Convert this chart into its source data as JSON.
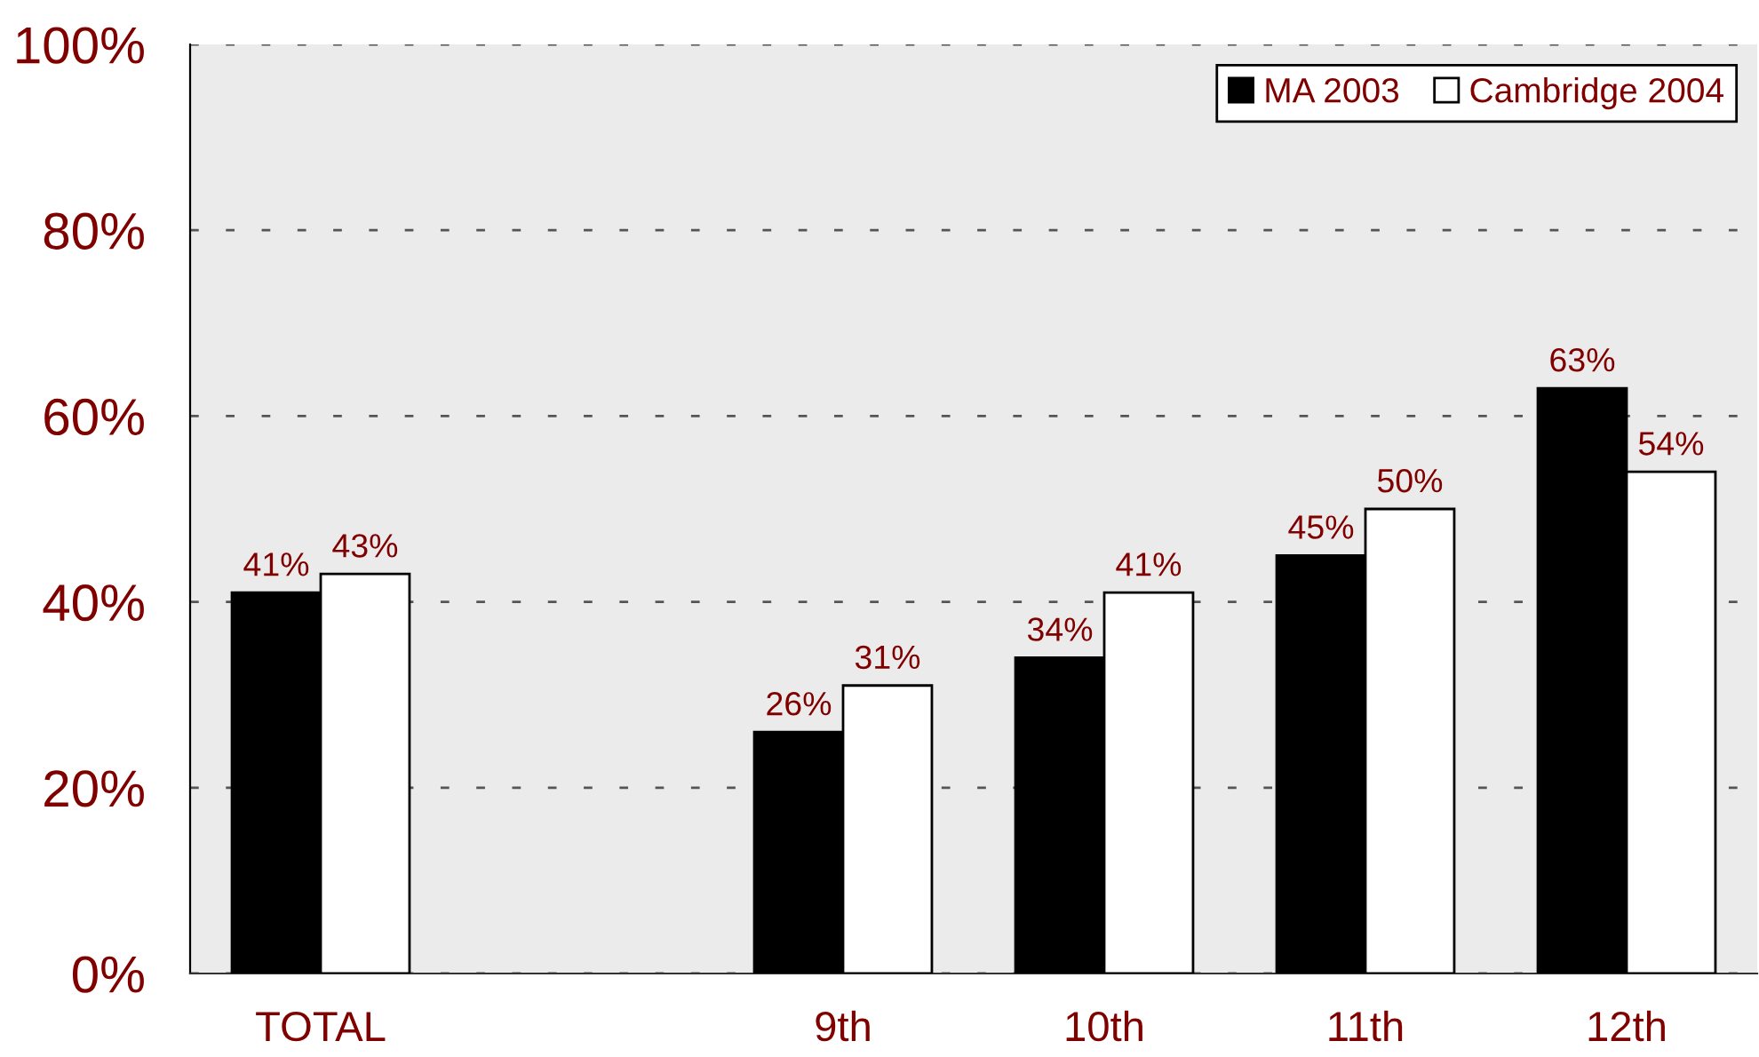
{
  "chart_data": {
    "type": "bar",
    "categories": [
      "TOTAL",
      null,
      "9th",
      "10th",
      "11th",
      "12th"
    ],
    "series": [
      {
        "name": "MA 2003",
        "color": "#000000",
        "values": [
          41,
          null,
          26,
          34,
          45,
          63
        ],
        "value_labels": [
          "41%",
          null,
          "26%",
          "34%",
          "45%",
          "63%"
        ]
      },
      {
        "name": "Cambridge 2004",
        "color": "#ffffff",
        "values": [
          43,
          null,
          31,
          41,
          50,
          54
        ],
        "value_labels": [
          "43%",
          null,
          "31%",
          "41%",
          "50%",
          "54%"
        ]
      }
    ],
    "ylim": [
      0,
      100
    ],
    "yticks": [
      {
        "value": 0,
        "label": "0%"
      },
      {
        "value": 20,
        "label": "20%"
      },
      {
        "value": 40,
        "label": "40%"
      },
      {
        "value": 60,
        "label": "60%"
      },
      {
        "value": 80,
        "label": "80%"
      },
      {
        "value": 100,
        "label": "100%"
      }
    ],
    "grid": "y",
    "legend": "top right"
  }
}
